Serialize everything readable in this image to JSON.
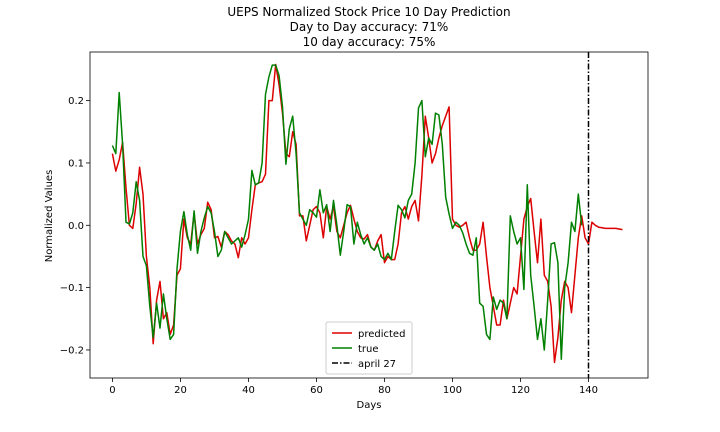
{
  "chart_data": {
    "type": "line",
    "title": [
      "UEPS Normalized Stock Price 10 Day Prediction",
      "Day to Day accuracy: 71%",
      "10 day accuracy: 75%"
    ],
    "xlabel": "Days",
    "ylabel": "Normalized Values",
    "xlim": [
      -6.6,
      157.5
    ],
    "ylim": [
      -0.245,
      0.278
    ],
    "xticks": [
      0,
      20,
      40,
      60,
      80,
      100,
      120,
      140
    ],
    "yticks": [
      -0.2,
      -0.1,
      0.0,
      0.1,
      0.2
    ],
    "ytick_labels": [
      "−0.2",
      "−0.1",
      "0.0",
      "0.1",
      "0.2"
    ],
    "grid": false,
    "legend": "bottom-center",
    "vline": {
      "x": 140,
      "label": "april 27",
      "color": "#000000",
      "style": "dashdot"
    },
    "series": [
      {
        "name": "predicted",
        "color": "#dd0000",
        "x_start": 0,
        "values": [
          0.115,
          0.087,
          0.105,
          0.133,
          0.06,
          0.0,
          -0.005,
          0.035,
          0.093,
          0.05,
          -0.05,
          -0.1,
          -0.19,
          -0.12,
          -0.09,
          -0.15,
          -0.14,
          -0.175,
          -0.16,
          -0.08,
          -0.07,
          0.01,
          -0.02,
          -0.03,
          0.02,
          -0.03,
          -0.015,
          -0.005,
          0.037,
          0.025,
          -0.02,
          -0.018,
          -0.035,
          -0.01,
          -0.015,
          -0.025,
          -0.03,
          -0.052,
          -0.02,
          -0.03,
          -0.02,
          0.025,
          0.065,
          0.068,
          0.07,
          0.082,
          0.2,
          0.2,
          0.258,
          0.225,
          0.18,
          0.115,
          0.11,
          0.15,
          0.13,
          0.015,
          0.015,
          -0.025,
          0.0,
          0.025,
          0.03,
          0.02,
          -0.02,
          0.03,
          0.01,
          0.03,
          -0.01,
          -0.02,
          0.0,
          0.02,
          0.032,
          0.01,
          -0.01,
          -0.02,
          -0.022,
          -0.015,
          -0.035,
          -0.04,
          -0.025,
          -0.015,
          -0.06,
          -0.05,
          -0.055,
          -0.055,
          -0.03,
          0.02,
          0.03,
          0.01,
          0.03,
          0.04,
          0.007,
          0.08,
          0.175,
          0.14,
          0.1,
          0.115,
          0.14,
          0.16,
          0.175,
          0.19,
          0.01,
          0.0,
          -0.003,
          0.0,
          0.005,
          -0.02,
          -0.04,
          -0.04,
          -0.03,
          0.005,
          -0.05,
          -0.1,
          -0.13,
          -0.16,
          -0.16,
          -0.12,
          -0.15,
          -0.125,
          -0.1,
          -0.11,
          -0.05,
          0.01,
          0.03,
          0.043,
          -0.01,
          -0.06,
          0.01,
          -0.08,
          -0.09,
          -0.13,
          -0.22,
          -0.18,
          -0.12,
          -0.09,
          -0.1,
          -0.14,
          -0.08,
          -0.02,
          0.015,
          -0.02,
          -0.03,
          0.005,
          0.0,
          -0.003,
          -0.004,
          -0.005,
          -0.005,
          -0.005,
          -0.005,
          -0.006,
          -0.007
        ]
      },
      {
        "name": "true",
        "color": "#008000",
        "x_start": 0,
        "values": [
          0.128,
          0.115,
          0.213,
          0.13,
          0.005,
          0.002,
          0.02,
          0.07,
          0.04,
          -0.05,
          -0.065,
          -0.13,
          -0.18,
          -0.125,
          -0.165,
          -0.11,
          -0.15,
          -0.183,
          -0.175,
          -0.07,
          -0.01,
          0.022,
          -0.015,
          -0.04,
          0.023,
          -0.045,
          -0.01,
          0.012,
          0.03,
          0.02,
          -0.01,
          -0.05,
          -0.04,
          -0.01,
          -0.02,
          -0.03,
          -0.025,
          -0.02,
          -0.035,
          -0.015,
          0.01,
          0.088,
          0.065,
          0.068,
          0.1,
          0.21,
          0.238,
          0.257,
          0.257,
          0.24,
          0.19,
          0.098,
          0.155,
          0.175,
          0.115,
          0.02,
          0.01,
          0.0,
          0.025,
          0.02,
          0.013,
          0.057,
          0.02,
          0.033,
          -0.01,
          0.04,
          0.0,
          -0.048,
          -0.01,
          0.033,
          0.03,
          -0.03,
          0.005,
          -0.015,
          -0.03,
          -0.02,
          -0.035,
          -0.04,
          -0.03,
          -0.05,
          -0.055,
          -0.045,
          -0.055,
          -0.01,
          0.032,
          0.025,
          0.012,
          0.04,
          0.05,
          0.1,
          0.188,
          0.2,
          0.11,
          0.14,
          0.13,
          0.18,
          0.177,
          0.13,
          0.045,
          0.018,
          -0.005,
          0.005,
          0.0,
          -0.012,
          -0.03,
          -0.045,
          -0.048,
          -0.02,
          -0.125,
          -0.13,
          -0.175,
          -0.183,
          -0.115,
          -0.135,
          -0.12,
          -0.125,
          -0.15,
          0.015,
          -0.01,
          -0.03,
          -0.02,
          -0.103,
          0.065,
          -0.08,
          -0.13,
          -0.183,
          -0.15,
          -0.2,
          -0.12,
          -0.03,
          -0.028,
          -0.06,
          -0.215,
          -0.1,
          -0.06,
          0.005,
          -0.01,
          0.05,
          0.0
        ]
      }
    ]
  }
}
